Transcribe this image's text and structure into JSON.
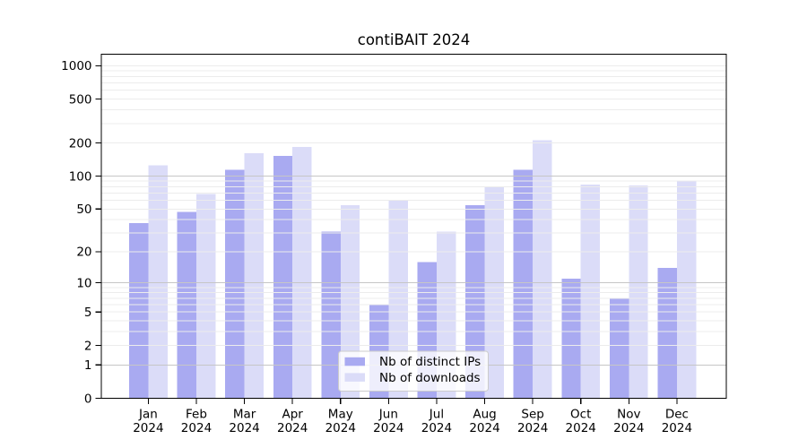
{
  "chart_data": {
    "type": "bar",
    "title": "contiBAIT 2024",
    "categories": [
      "Jan 2024",
      "Feb 2024",
      "Mar 2024",
      "Apr 2024",
      "May 2024",
      "Jun 2024",
      "Jul 2024",
      "Aug 2024",
      "Sep 2024",
      "Oct 2024",
      "Nov 2024",
      "Dec 2024"
    ],
    "series": [
      {
        "name": "Nb of distinct IPs",
        "color": "#a9aaf1",
        "values": [
          37,
          47,
          114,
          152,
          31,
          6,
          16,
          54,
          114,
          11,
          7,
          14
        ]
      },
      {
        "name": "Nb of downloads",
        "color": "#dbdcf8",
        "values": [
          126,
          69,
          162,
          185,
          54,
          61,
          31,
          80,
          211,
          84,
          82,
          90
        ]
      }
    ],
    "yscale": "log1p",
    "yticks": [
      0,
      1,
      2,
      5,
      10,
      20,
      50,
      100,
      200,
      500,
      1000
    ],
    "ylim": [
      0,
      1270
    ],
    "xlabel": "",
    "ylabel": "",
    "grid": {
      "major_values": [
        1,
        10,
        100
      ],
      "major_color": "#c6c6c6",
      "minor_color": "#ececec"
    },
    "legend": {
      "position": "lower center"
    }
  }
}
